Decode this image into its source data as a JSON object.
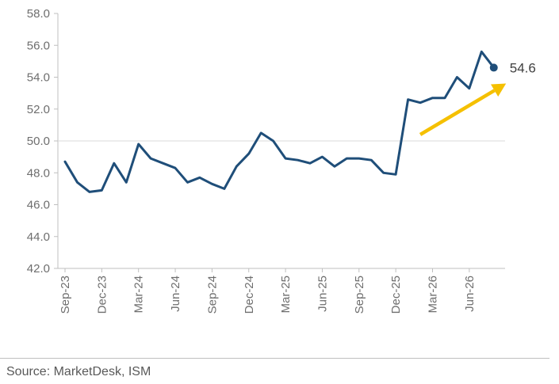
{
  "chart_data": {
    "type": "line",
    "title": "",
    "xlabel": "",
    "ylabel": "",
    "ylim": [
      42.0,
      58.0
    ],
    "yticks": [
      "42.0",
      "44.0",
      "46.0",
      "48.0",
      "50.0",
      "52.0",
      "54.0",
      "56.0",
      "58.0"
    ],
    "reference_line": 50.0,
    "x_tick_labels": [
      "Sep-23",
      "Dec-23",
      "Mar-24",
      "Jun-24",
      "Sep-24",
      "Dec-24",
      "Mar-25",
      "Jun-25",
      "Sep-25",
      "Dec-25",
      "Mar-26",
      "Jun-26"
    ],
    "x": [
      "Sep-23",
      "Oct-23",
      "Nov-23",
      "Dec-23",
      "Jan-24",
      "Feb-24",
      "Mar-24",
      "Apr-24",
      "May-24",
      "Jun-24",
      "Jul-24",
      "Aug-24",
      "Sep-24",
      "Oct-24",
      "Nov-24",
      "Dec-24",
      "Jan-25",
      "Feb-25",
      "Mar-25",
      "Apr-25",
      "May-25",
      "Jun-25",
      "Jul-25",
      "Aug-25",
      "Sep-25",
      "Oct-25",
      "Nov-25",
      "Dec-25",
      "Jan-26",
      "Feb-26",
      "Mar-26",
      "Apr-26",
      "May-26",
      "Jun-26",
      "Jul-26",
      "Aug-26",
      "Sep-26"
    ],
    "series": [
      {
        "name": "",
        "values": [
          48.7,
          47.4,
          46.8,
          46.9,
          48.6,
          47.4,
          49.8,
          48.9,
          48.6,
          48.3,
          47.4,
          47.7,
          47.3,
          47.0,
          48.4,
          49.2,
          50.5,
          50.0,
          48.9,
          48.8,
          48.6,
          49.0,
          48.4,
          48.9,
          48.9,
          48.8,
          48.0,
          47.9,
          52.6,
          52.4,
          52.7,
          52.7,
          54.0,
          53.3,
          55.6,
          54.6,
          null
        ]
      }
    ],
    "end_label": "54.6",
    "trend_arrow": {
      "from": {
        "x": "Feb-26",
        "y": 50.4
      },
      "to": {
        "x": "Sep-26",
        "y": 53.6
      }
    },
    "colors": {
      "line": "#1f4e79",
      "arrow": "#f5c000",
      "axis": "#bfbfbf",
      "reference": "#d9d9d9"
    },
    "grid": false,
    "legend": "none"
  },
  "source": "Source: MarketDesk, ISM"
}
